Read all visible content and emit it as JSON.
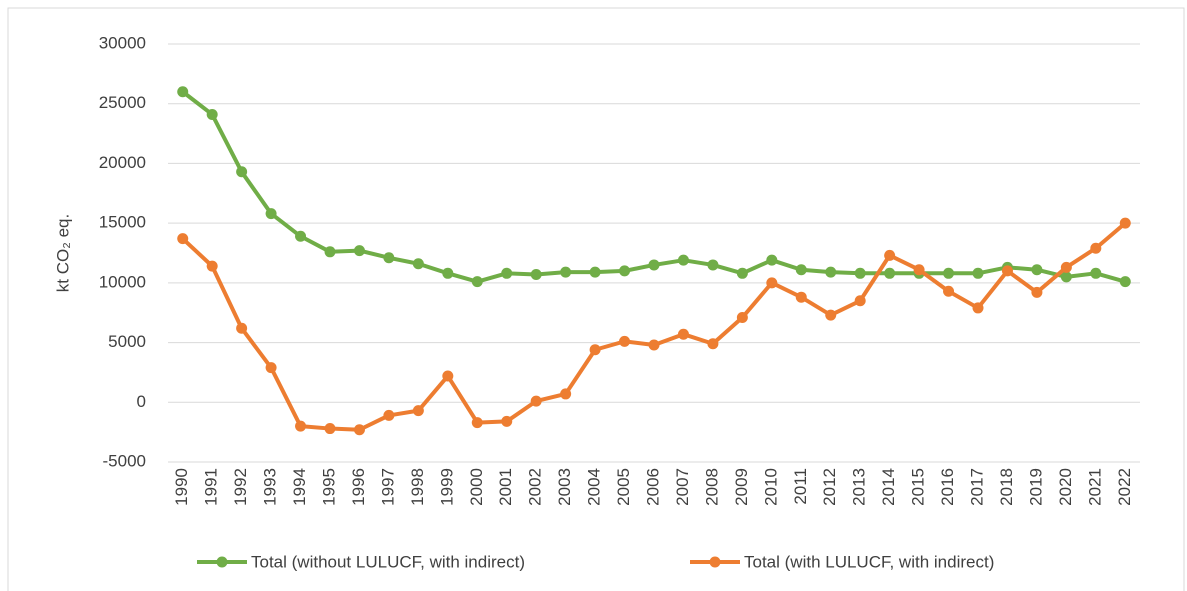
{
  "chart_data": {
    "type": "line",
    "y_label": "kt CO₂ eq.",
    "categories": [
      "1990",
      "1991",
      "1992",
      "1993",
      "1994",
      "1995",
      "1996",
      "1997",
      "1998",
      "1999",
      "2000",
      "2001",
      "2002",
      "2003",
      "2004",
      "2005",
      "2006",
      "2007",
      "2008",
      "2009",
      "2010",
      "2011",
      "2012",
      "2013",
      "2014",
      "2015",
      "2016",
      "2017",
      "2018",
      "2019",
      "2020",
      "2021",
      "2022"
    ],
    "series": [
      {
        "name": "Total (without LULUCF, with indirect)",
        "color": "#70ad47",
        "values": [
          26000,
          24100,
          19300,
          15800,
          13900,
          12600,
          12700,
          12100,
          11600,
          10800,
          10100,
          10800,
          10700,
          10900,
          10900,
          11000,
          11500,
          11900,
          11500,
          10800,
          11900,
          11100,
          10900,
          10800,
          10800,
          10800,
          10800,
          10800,
          11300,
          11100,
          10500,
          10800,
          10100
        ]
      },
      {
        "name": "Total (with LULUCF, with indirect)",
        "color": "#ed7d31",
        "values": [
          13700,
          11400,
          6200,
          2900,
          -2000,
          -2200,
          -2300,
          -1100,
          -700,
          2200,
          -1700,
          -1600,
          100,
          700,
          4400,
          5100,
          4800,
          5700,
          4900,
          7100,
          10000,
          8800,
          7300,
          8500,
          12300,
          11100,
          9300,
          7900,
          11000,
          9200,
          11300,
          12900,
          15000
        ]
      }
    ],
    "ylim": [
      -5000,
      30000
    ],
    "yticks": [
      -5000,
      0,
      5000,
      10000,
      15000,
      20000,
      25000,
      30000
    ],
    "grid": true,
    "legend": "bottom"
  }
}
